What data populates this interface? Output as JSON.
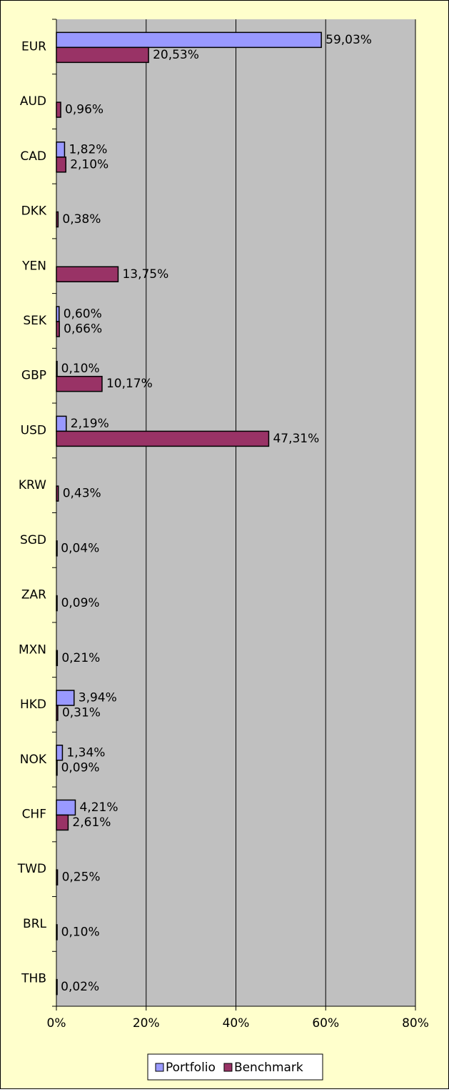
{
  "chart_data": {
    "type": "bar",
    "orientation": "horizontal",
    "categories": [
      "EUR",
      "AUD",
      "CAD",
      "DKK",
      "YEN",
      "SEK",
      "GBP",
      "USD",
      "KRW",
      "SGD",
      "ZAR",
      "MXN",
      "HKD",
      "NOK",
      "CHF",
      "TWD",
      "BRL",
      "THB"
    ],
    "series": [
      {
        "name": "Portfolio",
        "color": "#9999ff",
        "values": [
          59.03,
          null,
          1.82,
          null,
          null,
          0.6,
          0.1,
          2.19,
          null,
          null,
          null,
          null,
          3.94,
          1.34,
          4.21,
          null,
          null,
          null
        ],
        "value_labels": [
          "59,03%",
          null,
          "1,82%",
          null,
          null,
          "0,60%",
          "0,10%",
          "2,19%",
          null,
          null,
          null,
          null,
          "3,94%",
          "1,34%",
          "4,21%",
          null,
          null,
          null
        ]
      },
      {
        "name": "Benchmark",
        "color": "#993366",
        "values": [
          20.53,
          0.96,
          2.1,
          0.38,
          13.75,
          0.66,
          10.17,
          47.31,
          0.43,
          0.04,
          0.09,
          0.21,
          0.31,
          0.09,
          2.61,
          0.25,
          0.1,
          0.02
        ],
        "value_labels": [
          "20,53%",
          "0,96%",
          "2,10%",
          "0,38%",
          "13,75%",
          "0,66%",
          "10,17%",
          "47,31%",
          "0,43%",
          "0,04%",
          "0,09%",
          "0,21%",
          "0,31%",
          "0,09%",
          "2,61%",
          "0,25%",
          "0,10%",
          "0,02%"
        ]
      }
    ],
    "xlim": [
      0,
      80
    ],
    "xticks": [
      {
        "value": 0,
        "label": "0%"
      },
      {
        "value": 20,
        "label": "20%"
      },
      {
        "value": 40,
        "label": "40%"
      },
      {
        "value": 60,
        "label": "60%"
      },
      {
        "value": 80,
        "label": "80%"
      }
    ],
    "grid": true,
    "legend": "bottom"
  }
}
